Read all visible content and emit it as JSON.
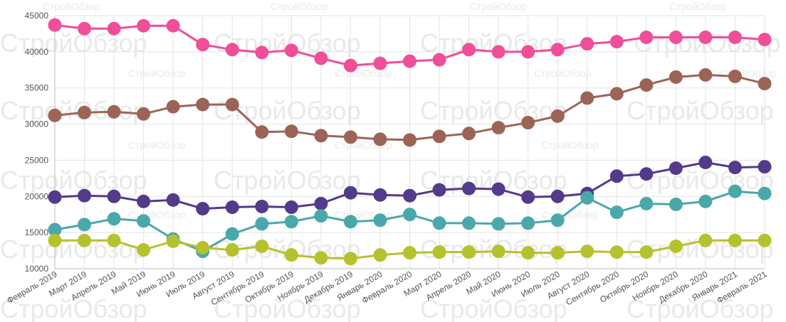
{
  "watermark": {
    "text": "СтройОбзор"
  },
  "chart_data": {
    "type": "line",
    "title": "",
    "xlabel": "",
    "ylabel": "",
    "ylim": [
      10000,
      45000
    ],
    "yticks": [
      10000,
      15000,
      20000,
      25000,
      30000,
      35000,
      40000,
      45000
    ],
    "grid": true,
    "legend": "none",
    "categories": [
      "Февраль 2019",
      "Март 2019",
      "Апрель 2019",
      "Май 2019",
      "Июнь 2019",
      "Июль 2019",
      "Август 2019",
      "Сентябрь 2019",
      "Октябрь 2019",
      "Ноябрь 2019",
      "Декабрь 2019",
      "Январь 2020",
      "Февраль 2020",
      "Март 2020",
      "Апрель 2020",
      "Май 2020",
      "Июнь 2020",
      "Июль 2020",
      "Август 2020",
      "Сентябрь 2020",
      "Октябрь 2020",
      "Ноябрь 2020",
      "Декабрь 2020",
      "Январь 2021",
      "Февраль 2021"
    ],
    "series": [
      {
        "name": "pink",
        "color": "#f04e98",
        "values": [
          43700,
          43200,
          43200,
          43600,
          43600,
          41000,
          40300,
          39900,
          40200,
          39100,
          38100,
          38400,
          38700,
          38900,
          40300,
          40000,
          40000,
          40300,
          41100,
          41400,
          42000,
          42000,
          42000,
          42000,
          41700
        ]
      },
      {
        "name": "brown",
        "color": "#9c6457",
        "values": [
          31200,
          31600,
          31700,
          31400,
          32400,
          32700,
          32700,
          28900,
          29000,
          28400,
          28200,
          27900,
          27800,
          28300,
          28700,
          29500,
          30200,
          31100,
          33600,
          34200,
          35400,
          36500,
          36800,
          36600,
          35600
        ]
      },
      {
        "name": "purple",
        "color": "#533a8b",
        "values": [
          19900,
          20100,
          20000,
          19300,
          19500,
          18300,
          18500,
          18600,
          18500,
          19000,
          20500,
          20200,
          20100,
          20900,
          21100,
          21000,
          19900,
          20000,
          20400,
          22800,
          23100,
          23900,
          24700,
          24000,
          24100
        ]
      },
      {
        "name": "teal",
        "color": "#4aa8aa",
        "values": [
          15400,
          16100,
          16900,
          16600,
          14100,
          12400,
          14800,
          16200,
          16500,
          17300,
          16500,
          16700,
          17500,
          16300,
          16300,
          16200,
          16300,
          16700,
          19800,
          17800,
          19000,
          18900,
          19300,
          20700,
          20400
        ]
      },
      {
        "name": "lime",
        "color": "#b5c22d",
        "values": [
          13900,
          13900,
          13900,
          12600,
          13800,
          12900,
          12600,
          13100,
          11900,
          11500,
          11400,
          11900,
          12200,
          12300,
          12300,
          12400,
          12200,
          12200,
          12400,
          12300,
          12300,
          13100,
          13900,
          13900,
          13900
        ]
      }
    ]
  }
}
